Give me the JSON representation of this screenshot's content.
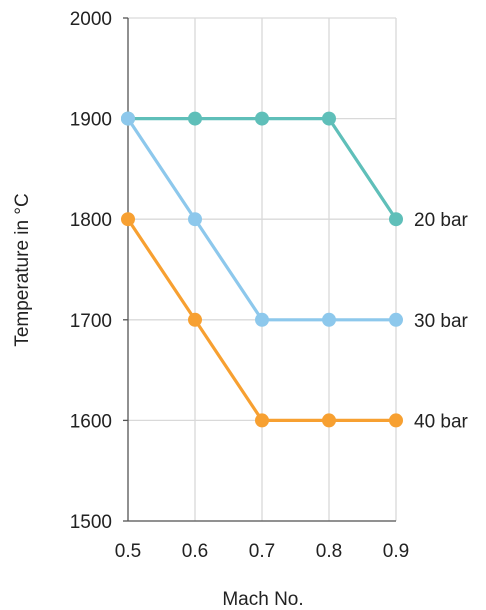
{
  "chart_data": {
    "type": "line",
    "title": "",
    "xlabel": "Mach No.",
    "ylabel": "Temperature in °C",
    "x": [
      0.5,
      0.6,
      0.7,
      0.8,
      0.9
    ],
    "x_ticks": [
      "0.5",
      "0.6",
      "0.7",
      "0.8",
      "0.9"
    ],
    "y_ticks": [
      "1500",
      "1600",
      "1700",
      "1800",
      "1900",
      "2000"
    ],
    "xlim": [
      0.5,
      0.9
    ],
    "ylim": [
      1500,
      2000
    ],
    "grid": true,
    "legend": "direct labels at right end of each series",
    "series": [
      {
        "name": "20 bar",
        "values": [
          1900,
          1900,
          1900,
          1900,
          1800
        ],
        "color": "#5fbfb9"
      },
      {
        "name": "30 bar",
        "values": [
          1900,
          1800,
          1700,
          1700,
          1700
        ],
        "color": "#8dc8ec"
      },
      {
        "name": "40 bar",
        "values": [
          1800,
          1700,
          1600,
          1600,
          1600
        ],
        "color": "#f7a031"
      }
    ]
  }
}
